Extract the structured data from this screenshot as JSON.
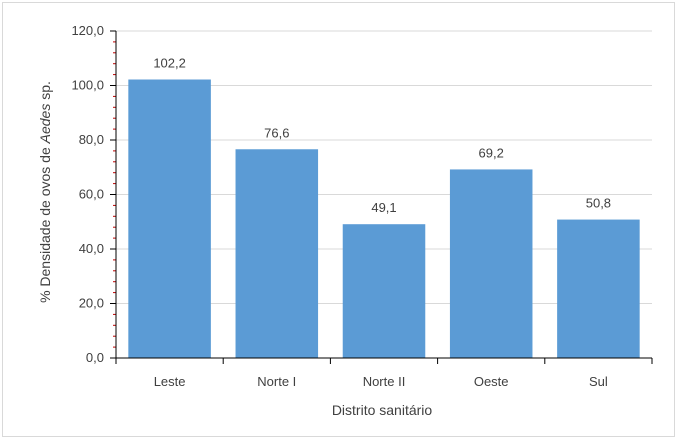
{
  "chart_data": {
    "type": "bar",
    "categories": [
      "Leste",
      "Norte I",
      "Norte II",
      "Oeste",
      "Sul"
    ],
    "values": [
      102.2,
      76.6,
      49.1,
      69.2,
      50.8
    ],
    "value_labels": [
      "102,2",
      "76,6",
      "49,1",
      "69,2",
      "50,8"
    ],
    "xlabel": "Distrito sanitário",
    "ylabel_prefix": "% Densidade de ovos de ",
    "ylabel_italic": "Aedes",
    "ylabel_suffix": " sp.",
    "ylim": [
      0,
      120
    ],
    "ytick_values": [
      0,
      20,
      40,
      60,
      80,
      100,
      120
    ],
    "ytick_labels": [
      "0,0",
      "20,0",
      "40,0",
      "60,0",
      "80,0",
      "100,0",
      "120,0"
    ],
    "grid": true,
    "bar_color": "#5b9bd5",
    "grid_color": "#d9d9d9",
    "axis_color": "#000000",
    "minor_tick_color": "#c00000"
  }
}
